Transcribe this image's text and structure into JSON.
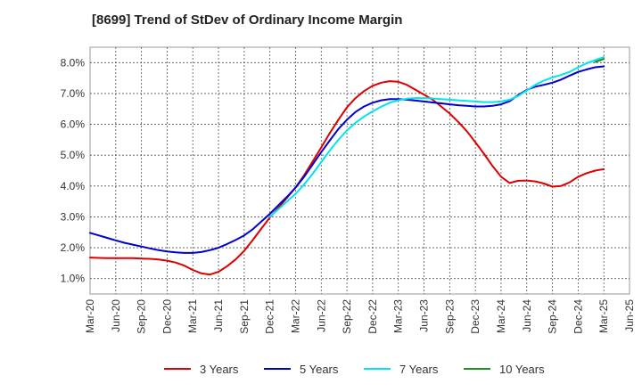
{
  "chart_data": {
    "type": "line",
    "title": "[8699]  Trend of StDev of Ordinary Income Margin",
    "xlabel": "",
    "ylabel": "",
    "x_ticks": [
      "Mar-20",
      "Jun-20",
      "Sep-20",
      "Dec-20",
      "Mar-21",
      "Jun-21",
      "Sep-21",
      "Dec-21",
      "Mar-22",
      "Jun-22",
      "Sep-22",
      "Dec-22",
      "Mar-23",
      "Jun-23",
      "Sep-23",
      "Dec-23",
      "Mar-24",
      "Jun-24",
      "Sep-24",
      "Dec-24",
      "Mar-25",
      "Jun-25"
    ],
    "y_ticks": [
      "1.0%",
      "2.0%",
      "3.0%",
      "4.0%",
      "5.0%",
      "6.0%",
      "7.0%",
      "8.0%"
    ],
    "ylim": [
      0.5,
      8.5
    ],
    "grid": true,
    "legend_position": "bottom",
    "series": [
      {
        "name": "3 Years",
        "color": "#dd0000",
        "x": [
          "2020-03",
          "2020-04",
          "2020-05",
          "2020-06",
          "2020-07",
          "2020-08",
          "2020-09",
          "2020-10",
          "2020-11",
          "2020-12",
          "2021-01",
          "2021-02",
          "2021-03",
          "2021-04",
          "2021-05",
          "2021-06",
          "2021-07",
          "2021-08",
          "2021-09",
          "2021-10",
          "2021-11",
          "2021-12",
          "2022-01",
          "2022-02",
          "2022-03",
          "2022-04",
          "2022-05",
          "2022-06",
          "2022-07",
          "2022-08",
          "2022-09",
          "2022-10",
          "2022-11",
          "2022-12",
          "2023-01",
          "2023-02",
          "2023-03",
          "2023-04",
          "2023-05",
          "2023-06",
          "2023-07",
          "2023-08",
          "2023-09",
          "2023-10",
          "2023-11",
          "2023-12",
          "2024-01",
          "2024-02",
          "2024-03",
          "2024-04",
          "2024-05",
          "2024-06",
          "2024-07",
          "2024-08",
          "2024-09",
          "2024-10",
          "2024-11",
          "2024-12",
          "2025-01",
          "2025-02",
          "2025-03"
        ],
        "values": [
          1.68,
          1.67,
          1.66,
          1.66,
          1.66,
          1.66,
          1.65,
          1.64,
          1.62,
          1.58,
          1.52,
          1.42,
          1.28,
          1.17,
          1.13,
          1.22,
          1.4,
          1.62,
          1.9,
          2.25,
          2.62,
          2.98,
          3.3,
          3.62,
          3.95,
          4.35,
          4.8,
          5.25,
          5.72,
          6.15,
          6.55,
          6.85,
          7.08,
          7.25,
          7.35,
          7.4,
          7.38,
          7.28,
          7.12,
          6.96,
          6.8,
          6.58,
          6.35,
          6.08,
          5.78,
          5.42,
          5.05,
          4.65,
          4.3,
          4.1,
          4.17,
          4.18,
          4.15,
          4.08,
          3.98,
          4.0,
          4.12,
          4.3,
          4.42,
          4.5,
          4.55
        ]
      },
      {
        "name": "5 Years",
        "color": "#0000cc",
        "x": [
          "2020-03",
          "2020-04",
          "2020-05",
          "2020-06",
          "2020-07",
          "2020-08",
          "2020-09",
          "2020-10",
          "2020-11",
          "2020-12",
          "2021-01",
          "2021-02",
          "2021-03",
          "2021-04",
          "2021-05",
          "2021-06",
          "2021-07",
          "2021-08",
          "2021-09",
          "2021-10",
          "2021-11",
          "2021-12",
          "2022-01",
          "2022-02",
          "2022-03",
          "2022-04",
          "2022-05",
          "2022-06",
          "2022-07",
          "2022-08",
          "2022-09",
          "2022-10",
          "2022-11",
          "2022-12",
          "2023-01",
          "2023-02",
          "2023-03",
          "2023-04",
          "2023-05",
          "2023-06",
          "2023-07",
          "2023-08",
          "2023-09",
          "2023-10",
          "2023-11",
          "2023-12",
          "2024-01",
          "2024-02",
          "2024-03",
          "2024-04",
          "2024-05",
          "2024-06",
          "2024-07",
          "2024-08",
          "2024-09",
          "2024-10",
          "2024-11",
          "2024-12",
          "2025-01",
          "2025-02",
          "2025-03"
        ],
        "values": [
          2.48,
          2.4,
          2.32,
          2.24,
          2.16,
          2.1,
          2.04,
          1.98,
          1.92,
          1.88,
          1.85,
          1.83,
          1.83,
          1.86,
          1.92,
          2.0,
          2.12,
          2.25,
          2.4,
          2.6,
          2.85,
          3.1,
          3.38,
          3.65,
          3.95,
          4.3,
          4.7,
          5.1,
          5.48,
          5.85,
          6.15,
          6.4,
          6.58,
          6.7,
          6.78,
          6.82,
          6.82,
          6.8,
          6.77,
          6.74,
          6.71,
          6.68,
          6.65,
          6.62,
          6.6,
          6.58,
          6.58,
          6.6,
          6.65,
          6.75,
          6.95,
          7.12,
          7.22,
          7.28,
          7.35,
          7.45,
          7.58,
          7.7,
          7.78,
          7.85,
          7.88
        ]
      },
      {
        "name": "7 Years",
        "color": "#00e5ee",
        "x": [
          "2021-12",
          "2022-01",
          "2022-02",
          "2022-03",
          "2022-04",
          "2022-05",
          "2022-06",
          "2022-07",
          "2022-08",
          "2022-09",
          "2022-10",
          "2022-11",
          "2022-12",
          "2023-01",
          "2023-02",
          "2023-03",
          "2023-04",
          "2023-05",
          "2023-06",
          "2023-07",
          "2023-08",
          "2023-09",
          "2023-10",
          "2023-11",
          "2023-12",
          "2024-01",
          "2024-02",
          "2024-03",
          "2024-04",
          "2024-05",
          "2024-06",
          "2024-07",
          "2024-08",
          "2024-09",
          "2024-10",
          "2024-11",
          "2024-12",
          "2025-01",
          "2025-02",
          "2025-03"
        ],
        "values": [
          3.0,
          3.25,
          3.5,
          3.75,
          4.05,
          4.4,
          4.78,
          5.15,
          5.5,
          5.8,
          6.05,
          6.25,
          6.42,
          6.57,
          6.7,
          6.78,
          6.83,
          6.85,
          6.85,
          6.84,
          6.82,
          6.8,
          6.78,
          6.76,
          6.74,
          6.72,
          6.72,
          6.74,
          6.8,
          6.92,
          7.1,
          7.28,
          7.42,
          7.52,
          7.6,
          7.7,
          7.85,
          7.98,
          8.08,
          8.18
        ]
      },
      {
        "name": "10 Years",
        "color": "#228b22",
        "x": [
          "2025-02",
          "2025-03"
        ],
        "values": [
          8.02,
          8.12
        ]
      }
    ]
  }
}
